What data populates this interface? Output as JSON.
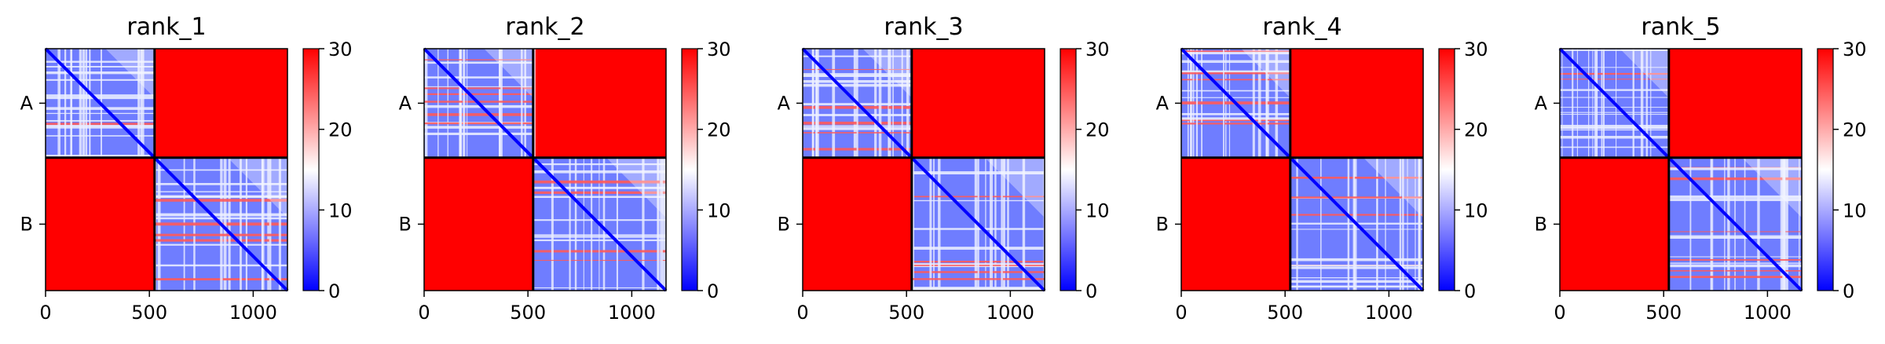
{
  "chart_data": {
    "type": "heatmap",
    "figure_kind": "pae-matrix-panels",
    "chains": [
      "A",
      "B"
    ],
    "chain_lengths": [
      525,
      640
    ],
    "x_ticks": [
      0,
      500,
      1000
    ],
    "x_lim": [
      0,
      1165
    ],
    "colorbar": {
      "ticks": [
        0,
        10,
        20,
        30
      ],
      "range": [
        0,
        30
      ],
      "colormap": "bwr",
      "low_color": "#0000ff",
      "mid_color": "#ffffff",
      "high_color": "#ff0000"
    },
    "panels": [
      {
        "title": "rank_1"
      },
      {
        "title": "rank_2"
      },
      {
        "title": "rank_3"
      },
      {
        "title": "rank_4"
      },
      {
        "title": "rank_5"
      }
    ]
  }
}
